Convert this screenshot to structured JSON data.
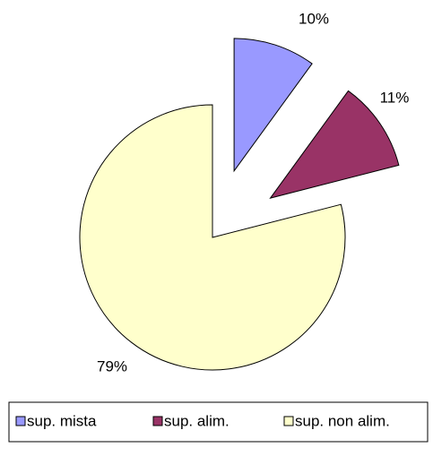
{
  "chart_data": {
    "type": "pie",
    "series": [
      {
        "name": "sup. mista",
        "color": "#9999ff",
        "values": [
          10
        ],
        "value_labels": [
          "10%"
        ]
      },
      {
        "name": "sup. alim.",
        "color": "#993366",
        "values": [
          11
        ],
        "value_labels": [
          "11%"
        ]
      },
      {
        "name": "sup. non alim.",
        "color": "#ffffcc",
        "values": [
          79
        ],
        "value_labels": [
          "79%"
        ]
      }
    ],
    "legend": "bottom"
  }
}
